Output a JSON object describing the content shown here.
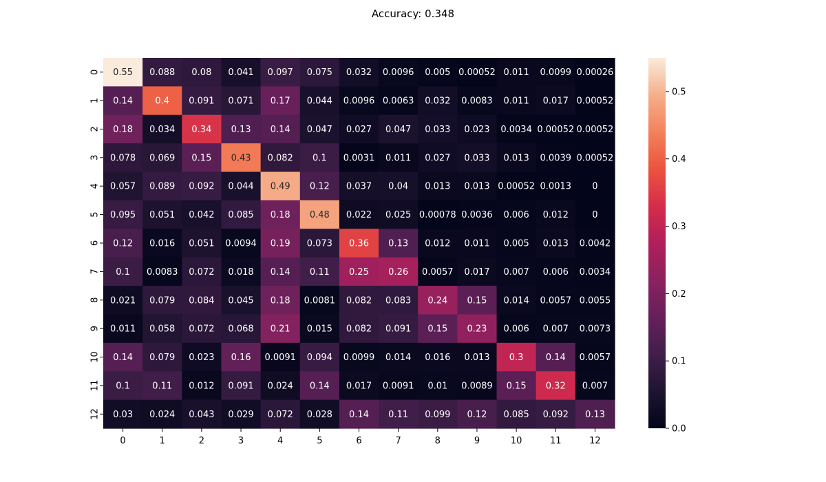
{
  "chart_data": {
    "type": "heatmap",
    "title": "Accuracy: 0.348",
    "x_categories": [
      "0",
      "1",
      "2",
      "3",
      "4",
      "5",
      "6",
      "7",
      "8",
      "9",
      "10",
      "11",
      "12"
    ],
    "y_categories": [
      "0",
      "1",
      "2",
      "3",
      "4",
      "5",
      "6",
      "7",
      "8",
      "9",
      "10",
      "11",
      "12"
    ],
    "values": [
      [
        0.55,
        0.088,
        0.08,
        0.041,
        0.097,
        0.075,
        0.032,
        0.0096,
        0.005,
        0.00052,
        0.011,
        0.0099,
        0.00026
      ],
      [
        0.14,
        0.4,
        0.091,
        0.071,
        0.17,
        0.044,
        0.0096,
        0.0063,
        0.032,
        0.0083,
        0.011,
        0.017,
        0.00052
      ],
      [
        0.18,
        0.034,
        0.34,
        0.13,
        0.14,
        0.047,
        0.027,
        0.047,
        0.033,
        0.023,
        0.0034,
        0.00052,
        0.00052
      ],
      [
        0.078,
        0.069,
        0.15,
        0.43,
        0.082,
        0.1,
        0.0031,
        0.011,
        0.027,
        0.033,
        0.013,
        0.0039,
        0.00052
      ],
      [
        0.057,
        0.089,
        0.092,
        0.044,
        0.49,
        0.12,
        0.037,
        0.04,
        0.013,
        0.013,
        0.00052,
        0.0013,
        0
      ],
      [
        0.095,
        0.051,
        0.042,
        0.085,
        0.18,
        0.48,
        0.022,
        0.025,
        0.00078,
        0.0036,
        0.006,
        0.012,
        0
      ],
      [
        0.12,
        0.016,
        0.051,
        0.0094,
        0.19,
        0.073,
        0.36,
        0.13,
        0.012,
        0.011,
        0.005,
        0.013,
        0.0042
      ],
      [
        0.1,
        0.0083,
        0.072,
        0.018,
        0.14,
        0.11,
        0.25,
        0.26,
        0.0057,
        0.017,
        0.007,
        0.006,
        0.0034
      ],
      [
        0.021,
        0.079,
        0.084,
        0.045,
        0.18,
        0.0081,
        0.082,
        0.083,
        0.24,
        0.15,
        0.014,
        0.0057,
        0.0055
      ],
      [
        0.011,
        0.058,
        0.072,
        0.068,
        0.21,
        0.015,
        0.082,
        0.091,
        0.15,
        0.23,
        0.006,
        0.007,
        0.0073
      ],
      [
        0.14,
        0.079,
        0.023,
        0.16,
        0.0091,
        0.094,
        0.0099,
        0.014,
        0.016,
        0.013,
        0.3,
        0.14,
        0.0057
      ],
      [
        0.1,
        0.11,
        0.012,
        0.091,
        0.024,
        0.14,
        0.017,
        0.0091,
        0.01,
        0.0089,
        0.15,
        0.32,
        0.007
      ],
      [
        0.03,
        0.024,
        0.043,
        0.029,
        0.072,
        0.028,
        0.14,
        0.11,
        0.099,
        0.12,
        0.085,
        0.092,
        0.13
      ]
    ],
    "colorbar": {
      "vmin": 0,
      "vmax": 0.55,
      "ticks": [
        0.0,
        0.1,
        0.2,
        0.3,
        0.4,
        0.5
      ],
      "tick_labels": [
        "0.0",
        "0.1",
        "0.2",
        "0.3",
        "0.4",
        "0.5"
      ],
      "colormap": "rocket"
    },
    "grid": false
  }
}
